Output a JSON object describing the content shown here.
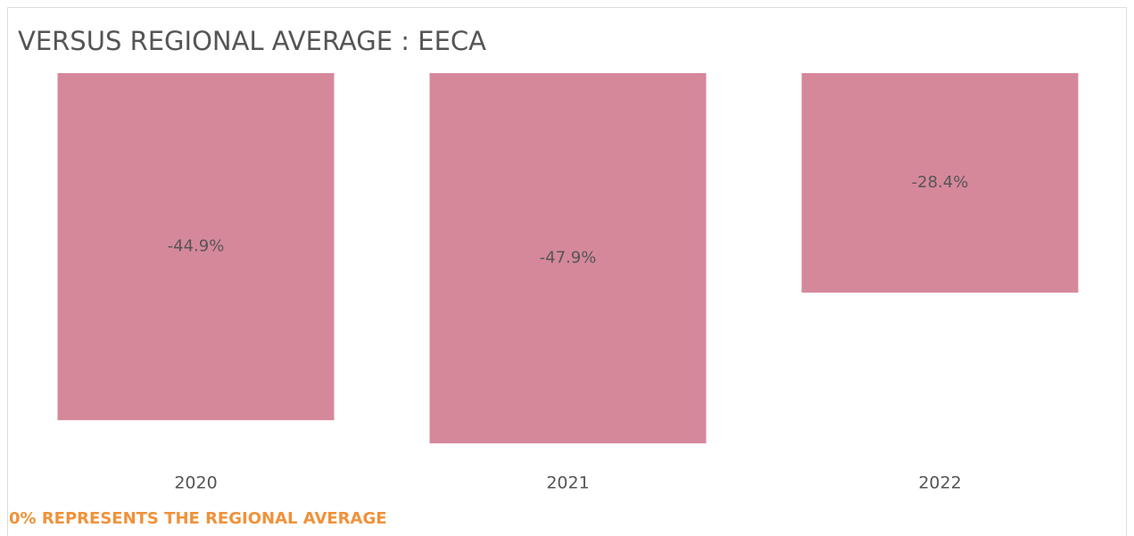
{
  "chart_data": {
    "type": "bar",
    "title": "VERSUS REGIONAL AVERAGE : EECA",
    "categories": [
      "2020",
      "2021",
      "2022"
    ],
    "values": [
      -44.9,
      -47.9,
      -28.4
    ],
    "value_labels": [
      "-44.9%",
      "-47.9%",
      "-28.4%"
    ],
    "color": "#d6889b",
    "ylim": [
      -48,
      0
    ],
    "footnote": "0% REPRESENTS THE REGIONAL AVERAGE"
  }
}
